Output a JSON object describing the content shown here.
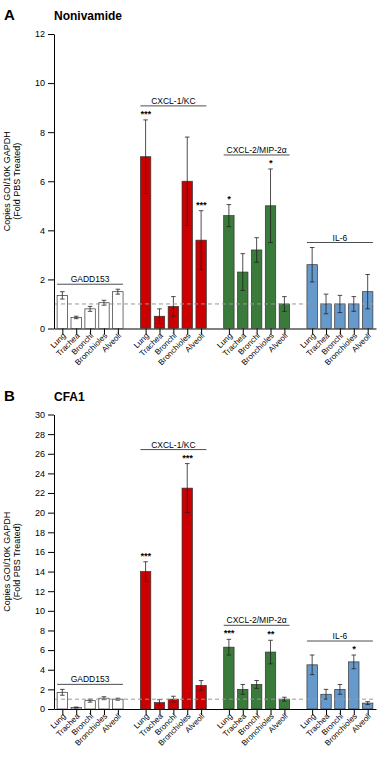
{
  "chart_data": [
    {
      "type": "bar",
      "title": "Nonivamide",
      "annotations": [
        "A"
      ],
      "ylabel": "Copies GOI/10K GAPDH\n(Fold PBS Treated)",
      "categories": [
        "Lung",
        "Trachea",
        "Bronchi",
        "Bronchioles",
        "Alveoli"
      ],
      "series": [
        {
          "name": "GADD153",
          "color": "white",
          "values": [
            1.35,
            0.45,
            0.8,
            1.05,
            1.5
          ],
          "errors": [
            0.15,
            0.05,
            0.1,
            0.1,
            0.1
          ],
          "significance": [
            null,
            null,
            null,
            null,
            null
          ]
        },
        {
          "name": "CXCL-1/KC",
          "color": "#cc0000",
          "values": [
            7.0,
            0.5,
            0.9,
            6.0,
            3.6
          ],
          "errors": [
            1.5,
            0.3,
            0.4,
            1.8,
            1.2
          ],
          "significance": [
            "***",
            null,
            null,
            null,
            "***"
          ]
        },
        {
          "name": "CXCL-2/MIP-2α",
          "color": "#3a7a3a",
          "values": [
            4.6,
            2.3,
            3.2,
            5.0,
            1.0
          ],
          "errors": [
            0.45,
            0.75,
            0.5,
            1.5,
            0.3
          ],
          "significance": [
            "*",
            null,
            null,
            "*",
            null
          ]
        },
        {
          "name": "IL-6",
          "color": "#6699cc",
          "values": [
            2.6,
            1.0,
            1.0,
            1.0,
            1.5
          ],
          "errors": [
            0.7,
            0.4,
            0.35,
            0.3,
            0.7
          ],
          "significance": [
            null,
            null,
            null,
            null,
            null
          ]
        }
      ],
      "reference_y": 1.0,
      "ylim": [
        0,
        12
      ],
      "yticks": [
        0,
        2,
        4,
        6,
        8,
        10,
        12
      ],
      "grid": false
    },
    {
      "type": "bar",
      "title": "CFA1",
      "annotations": [
        "B"
      ],
      "ylabel": "Copies GOI/10K GAPDH\n(Fold PBS Treated)",
      "categories": [
        "Lung",
        "Trachea",
        "Bronchi",
        "Bronchioles",
        "Alveoli"
      ],
      "series": [
        {
          "name": "GADD153",
          "color": "white",
          "values": [
            1.7,
            0.15,
            0.85,
            1.1,
            1.0
          ],
          "errors": [
            0.3,
            0.05,
            0.15,
            0.15,
            0.1
          ],
          "significance": [
            null,
            null,
            null,
            null,
            null
          ]
        },
        {
          "name": "CXCL-1/KC",
          "color": "#cc0000",
          "values": [
            14.0,
            0.65,
            1.0,
            22.5,
            2.4
          ],
          "errors": [
            1.0,
            0.3,
            0.3,
            2.5,
            0.5
          ],
          "significance": [
            "***",
            null,
            null,
            "***",
            null
          ]
        },
        {
          "name": "CXCL-2/MIP-2α",
          "color": "#3a7a3a",
          "values": [
            6.3,
            2.0,
            2.5,
            5.8,
            1.0
          ],
          "errors": [
            0.8,
            0.5,
            0.4,
            1.2,
            0.2
          ],
          "significance": [
            "***",
            null,
            null,
            "**",
            null
          ]
        },
        {
          "name": "IL-6",
          "color": "#6699cc",
          "values": [
            4.5,
            1.5,
            2.0,
            4.8,
            0.6
          ],
          "errors": [
            1.0,
            0.5,
            0.5,
            0.7,
            0.15
          ],
          "significance": [
            null,
            null,
            null,
            "*",
            null
          ]
        }
      ],
      "reference_y": 1.0,
      "ylim": [
        0,
        30
      ],
      "yticks": [
        0,
        2,
        4,
        6,
        8,
        10,
        12,
        14,
        16,
        18,
        20,
        22,
        24,
        26,
        28,
        30
      ],
      "grid": false
    }
  ]
}
